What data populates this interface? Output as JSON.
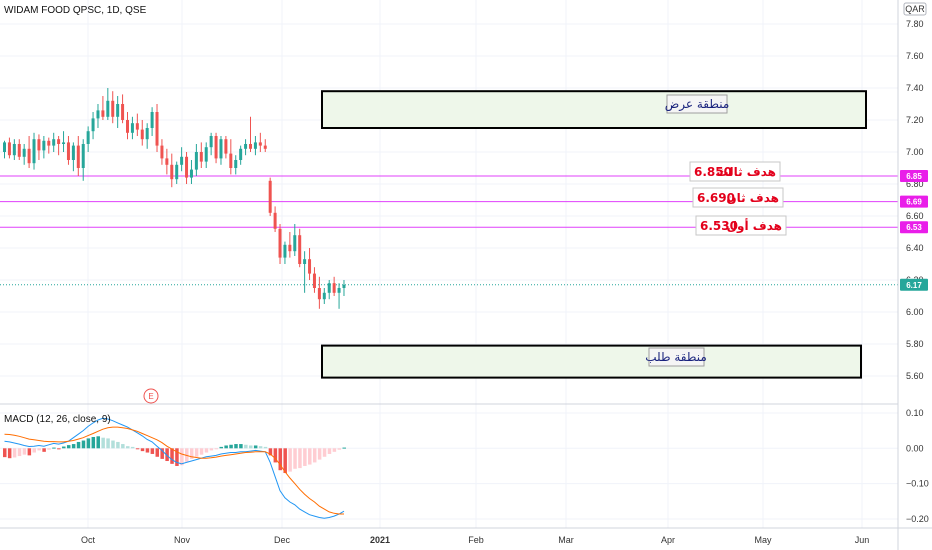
{
  "header": {
    "symbol_title": "WIDAM FOOD QPSC, 1D, QSE",
    "currency": "QAR"
  },
  "indicator": {
    "macd_label": "MACD (12, 26, close, 9)",
    "event_badge": "E"
  },
  "zones": {
    "supply_label": "منطقة عرض",
    "demand_label": "منطقة طلب"
  },
  "targets": [
    {
      "label": "هدف ثالث",
      "value": "6.850",
      "price": 6.85,
      "tag": "6.85"
    },
    {
      "label": "هدف ثان",
      "value": "6.690",
      "price": 6.69,
      "tag": "6.69"
    },
    {
      "label": "هدف أول",
      "value": "6.530",
      "price": 6.53,
      "tag": "6.53"
    }
  ],
  "last_price": {
    "value": 6.17,
    "tag": "6.17"
  },
  "colors": {
    "up": "#26a69a",
    "down": "#ef5350",
    "target_line": "#e040fb",
    "target_tag": "#e91ee9",
    "last_tag": "#26a69a",
    "macd_line": "#2196f3",
    "signal_line": "#ff6d00",
    "zone_fill": "#eef7ea",
    "grid": "#f0f3fa"
  },
  "chart_data": [
    {
      "type": "candlestick",
      "title": "WIDAM FOOD QPSC, 1D, QSE",
      "currency": "QAR",
      "ylim": [
        5.5,
        7.9
      ],
      "y_ticks": [
        7.8,
        7.6,
        7.4,
        7.2,
        7.0,
        6.8,
        6.6,
        6.4,
        6.2,
        6.0,
        5.8,
        5.6
      ],
      "y_tick_labels": [
        "7.80",
        "7.60",
        "7.40",
        "7.20",
        "7.00",
        "6.80",
        "6.60",
        "6.40",
        "6.20",
        "6.00",
        "5.80",
        "5.60"
      ],
      "x_tick_labels": [
        "Oct",
        "Nov",
        "Dec",
        "2021",
        "Feb",
        "Mar",
        "Apr",
        "May",
        "Jun"
      ],
      "grid": true,
      "candles": [
        [
          7.0,
          7.07,
          6.96,
          7.06
        ],
        [
          7.06,
          7.09,
          6.96,
          6.98
        ],
        [
          6.98,
          7.08,
          6.95,
          7.05
        ],
        [
          7.05,
          7.08,
          6.95,
          6.97
        ],
        [
          6.97,
          7.05,
          6.92,
          7.02
        ],
        [
          7.02,
          7.1,
          6.9,
          6.93
        ],
        [
          6.93,
          7.12,
          6.89,
          7.08
        ],
        [
          7.08,
          7.11,
          6.95,
          7.01
        ],
        [
          7.01,
          7.1,
          6.96,
          7.07
        ],
        [
          7.07,
          7.09,
          6.99,
          7.04
        ],
        [
          7.04,
          7.12,
          7.0,
          7.08
        ],
        [
          7.08,
          7.1,
          6.98,
          7.05
        ],
        [
          7.05,
          7.13,
          7.0,
          7.06
        ],
        [
          7.06,
          7.1,
          6.92,
          6.95
        ],
        [
          6.95,
          7.06,
          6.88,
          7.04
        ],
        [
          7.04,
          7.1,
          6.85,
          6.9
        ],
        [
          6.9,
          7.08,
          6.82,
          7.05
        ],
        [
          7.05,
          7.16,
          7.0,
          7.13
        ],
        [
          7.13,
          7.25,
          7.08,
          7.21
        ],
        [
          7.21,
          7.3,
          7.15,
          7.26
        ],
        [
          7.26,
          7.35,
          7.2,
          7.22
        ],
        [
          7.22,
          7.4,
          7.2,
          7.32
        ],
        [
          7.32,
          7.38,
          7.18,
          7.22
        ],
        [
          7.22,
          7.35,
          7.15,
          7.3
        ],
        [
          7.3,
          7.36,
          7.18,
          7.2
        ],
        [
          7.2,
          7.25,
          7.08,
          7.12
        ],
        [
          7.12,
          7.22,
          7.08,
          7.18
        ],
        [
          7.18,
          7.24,
          7.1,
          7.14
        ],
        [
          7.14,
          7.2,
          7.04,
          7.08
        ],
        [
          7.08,
          7.18,
          7.02,
          7.15
        ],
        [
          7.15,
          7.28,
          7.1,
          7.25
        ],
        [
          7.25,
          7.3,
          7.0,
          7.04
        ],
        [
          7.04,
          7.08,
          6.92,
          6.96
        ],
        [
          6.96,
          7.02,
          6.86,
          6.92
        ],
        [
          6.92,
          6.99,
          6.78,
          6.83
        ],
        [
          6.83,
          6.94,
          6.8,
          6.92
        ],
        [
          6.92,
          7.03,
          6.88,
          6.97
        ],
        [
          6.97,
          7.0,
          6.8,
          6.84
        ],
        [
          6.84,
          6.95,
          6.8,
          6.89
        ],
        [
          6.89,
          7.05,
          6.85,
          7.0
        ],
        [
          7.0,
          7.06,
          6.9,
          6.94
        ],
        [
          6.94,
          7.06,
          6.9,
          7.03
        ],
        [
          7.03,
          7.12,
          6.98,
          7.1
        ],
        [
          7.1,
          7.12,
          6.93,
          6.96
        ],
        [
          6.96,
          7.1,
          6.92,
          7.08
        ],
        [
          7.08,
          7.1,
          6.96,
          6.99
        ],
        [
          6.99,
          7.08,
          6.86,
          6.9
        ],
        [
          6.9,
          6.98,
          6.86,
          6.95
        ],
        [
          6.95,
          7.04,
          6.92,
          7.02
        ],
        [
          7.02,
          7.08,
          6.98,
          7.05
        ],
        [
          7.05,
          7.22,
          7.0,
          7.02
        ],
        [
          7.02,
          7.1,
          6.98,
          7.06
        ],
        [
          7.06,
          7.12,
          7.0,
          7.04
        ],
        [
          7.04,
          7.08,
          7.0,
          7.02
        ],
        [
          6.82,
          6.84,
          6.6,
          6.62
        ],
        [
          6.62,
          6.66,
          6.5,
          6.52
        ],
        [
          6.52,
          6.55,
          6.3,
          6.34
        ],
        [
          6.34,
          6.44,
          6.3,
          6.42
        ],
        [
          6.42,
          6.5,
          6.34,
          6.38
        ],
        [
          6.38,
          6.55,
          6.35,
          6.48
        ],
        [
          6.48,
          6.52,
          6.28,
          6.3
        ],
        [
          6.3,
          6.38,
          6.12,
          6.33
        ],
        [
          6.33,
          6.4,
          6.2,
          6.24
        ],
        [
          6.24,
          6.28,
          6.12,
          6.15
        ],
        [
          6.15,
          6.22,
          6.02,
          6.08
        ],
        [
          6.08,
          6.15,
          6.05,
          6.12
        ],
        [
          6.12,
          6.2,
          6.08,
          6.18
        ],
        [
          6.18,
          6.22,
          6.1,
          6.12
        ],
        [
          6.12,
          6.18,
          6.02,
          6.15
        ],
        [
          6.15,
          6.2,
          6.1,
          6.17
        ]
      ],
      "last_price": 6.17,
      "supply_zone": [
        7.15,
        7.38
      ],
      "demand_zone": [
        5.59,
        5.79
      ],
      "target_levels": [
        6.85,
        6.69,
        6.53
      ]
    },
    {
      "type": "bar+line",
      "title": "MACD (12, 26, close, 9)",
      "ylim": [
        -0.23,
        0.12
      ],
      "y_ticks": [
        0.1,
        0.0,
        -0.1,
        -0.2
      ],
      "y_tick_labels": [
        "0.10",
        "0.00",
        "−0.10",
        "−0.20"
      ],
      "histogram": [
        -0.025,
        -0.028,
        -0.026,
        -0.022,
        -0.018,
        -0.02,
        -0.012,
        -0.006,
        -0.01,
        -0.004,
        0.002,
        -0.003,
        0.005,
        0.009,
        0.012,
        0.018,
        0.022,
        0.028,
        0.032,
        0.034,
        0.03,
        0.028,
        0.022,
        0.018,
        0.012,
        0.006,
        0.004,
        -0.002,
        -0.008,
        -0.012,
        -0.016,
        -0.024,
        -0.03,
        -0.036,
        -0.044,
        -0.05,
        -0.048,
        -0.038,
        -0.03,
        -0.024,
        -0.018,
        -0.012,
        -0.006,
        -0.002,
        0.004,
        0.008,
        0.01,
        0.012,
        0.012,
        0.01,
        0.008,
        0.008,
        0.006,
        0.004,
        -0.02,
        -0.04,
        -0.062,
        -0.07,
        -0.066,
        -0.058,
        -0.056,
        -0.05,
        -0.046,
        -0.04,
        -0.032,
        -0.024,
        -0.016,
        -0.01,
        -0.004,
        0.002
      ],
      "macd_line": [
        0.02,
        0.018,
        0.015,
        0.012,
        0.008,
        0.005,
        0.006,
        0.008,
        0.006,
        0.01,
        0.014,
        0.012,
        0.015,
        0.02,
        0.03,
        0.04,
        0.05,
        0.062,
        0.072,
        0.08,
        0.085,
        0.083,
        0.078,
        0.072,
        0.066,
        0.06,
        0.052,
        0.044,
        0.035,
        0.025,
        0.018,
        0.006,
        -0.006,
        -0.02,
        -0.032,
        -0.04,
        -0.044,
        -0.04,
        -0.036,
        -0.032,
        -0.028,
        -0.024,
        -0.022,
        -0.02,
        -0.016,
        -0.014,
        -0.012,
        -0.012,
        -0.01,
        -0.01,
        -0.008,
        -0.006,
        -0.008,
        -0.01,
        -0.04,
        -0.08,
        -0.12,
        -0.14,
        -0.152,
        -0.16,
        -0.172,
        -0.18,
        -0.188,
        -0.192,
        -0.196,
        -0.198,
        -0.196,
        -0.192,
        -0.186,
        -0.178
      ],
      "signal_line": [
        0.04,
        0.039,
        0.037,
        0.034,
        0.03,
        0.026,
        0.024,
        0.022,
        0.02,
        0.019,
        0.019,
        0.018,
        0.018,
        0.02,
        0.022,
        0.026,
        0.03,
        0.036,
        0.042,
        0.048,
        0.054,
        0.058,
        0.06,
        0.06,
        0.058,
        0.056,
        0.052,
        0.048,
        0.042,
        0.036,
        0.03,
        0.024,
        0.016,
        0.006,
        -0.002,
        -0.01,
        -0.016,
        -0.02,
        -0.024,
        -0.026,
        -0.028,
        -0.028,
        -0.027,
        -0.025,
        -0.022,
        -0.02,
        -0.018,
        -0.016,
        -0.014,
        -0.012,
        -0.011,
        -0.01,
        -0.01,
        -0.01,
        -0.016,
        -0.028,
        -0.046,
        -0.066,
        -0.084,
        -0.1,
        -0.116,
        -0.13,
        -0.142,
        -0.152,
        -0.164,
        -0.172,
        -0.18,
        -0.184,
        -0.186,
        -0.186
      ]
    }
  ]
}
